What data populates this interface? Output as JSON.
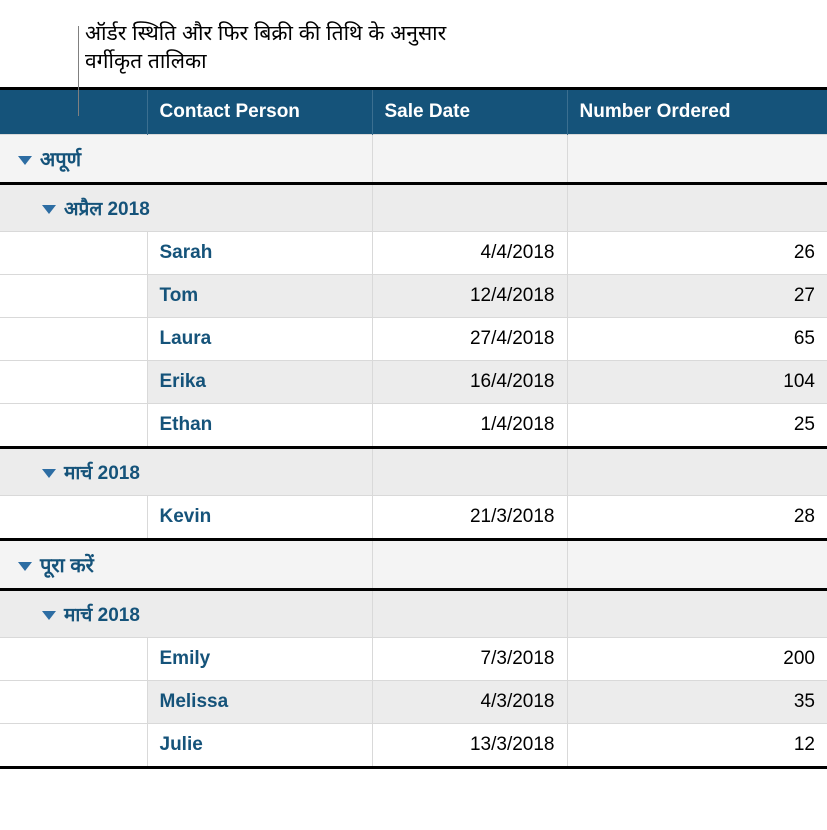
{
  "callout": {
    "text": "ऑर्डर स्थिति और फिर बिक्री की तिथि के अनुसार वर्गीकृत तालिका"
  },
  "table": {
    "columns": {
      "contact": "Contact Person",
      "saleDate": "Sale Date",
      "numberOrdered": "Number Ordered"
    },
    "groups": [
      {
        "label": "अपूर्ण",
        "subgroups": [
          {
            "label": "अप्रैल 2018",
            "rows": [
              {
                "contact": "Sarah",
                "date": "4/4/2018",
                "number": "26"
              },
              {
                "contact": "Tom",
                "date": "12/4/2018",
                "number": "27"
              },
              {
                "contact": "Laura",
                "date": "27/4/2018",
                "number": "65"
              },
              {
                "contact": "Erika",
                "date": "16/4/2018",
                "number": "104"
              },
              {
                "contact": "Ethan",
                "date": "1/4/2018",
                "number": "25"
              }
            ]
          },
          {
            "label": "मार्च 2018",
            "rows": [
              {
                "contact": "Kevin",
                "date": "21/3/2018",
                "number": "28"
              }
            ]
          }
        ]
      },
      {
        "label": "पूरा करें",
        "subgroups": [
          {
            "label": "मार्च 2018",
            "rows": [
              {
                "contact": "Emily",
                "date": "7/3/2018",
                "number": "200"
              },
              {
                "contact": "Melissa",
                "date": "4/3/2018",
                "number": "35"
              },
              {
                "contact": "Julie",
                "date": "13/3/2018",
                "number": "12"
              }
            ]
          }
        ]
      }
    ]
  },
  "colors": {
    "headerBg": "#15537a",
    "headerText": "#ffffff",
    "groupText": "#15537a",
    "altRowBg": "#ececec",
    "border": "#d9d9d9",
    "heavyBorder": "#000000"
  }
}
